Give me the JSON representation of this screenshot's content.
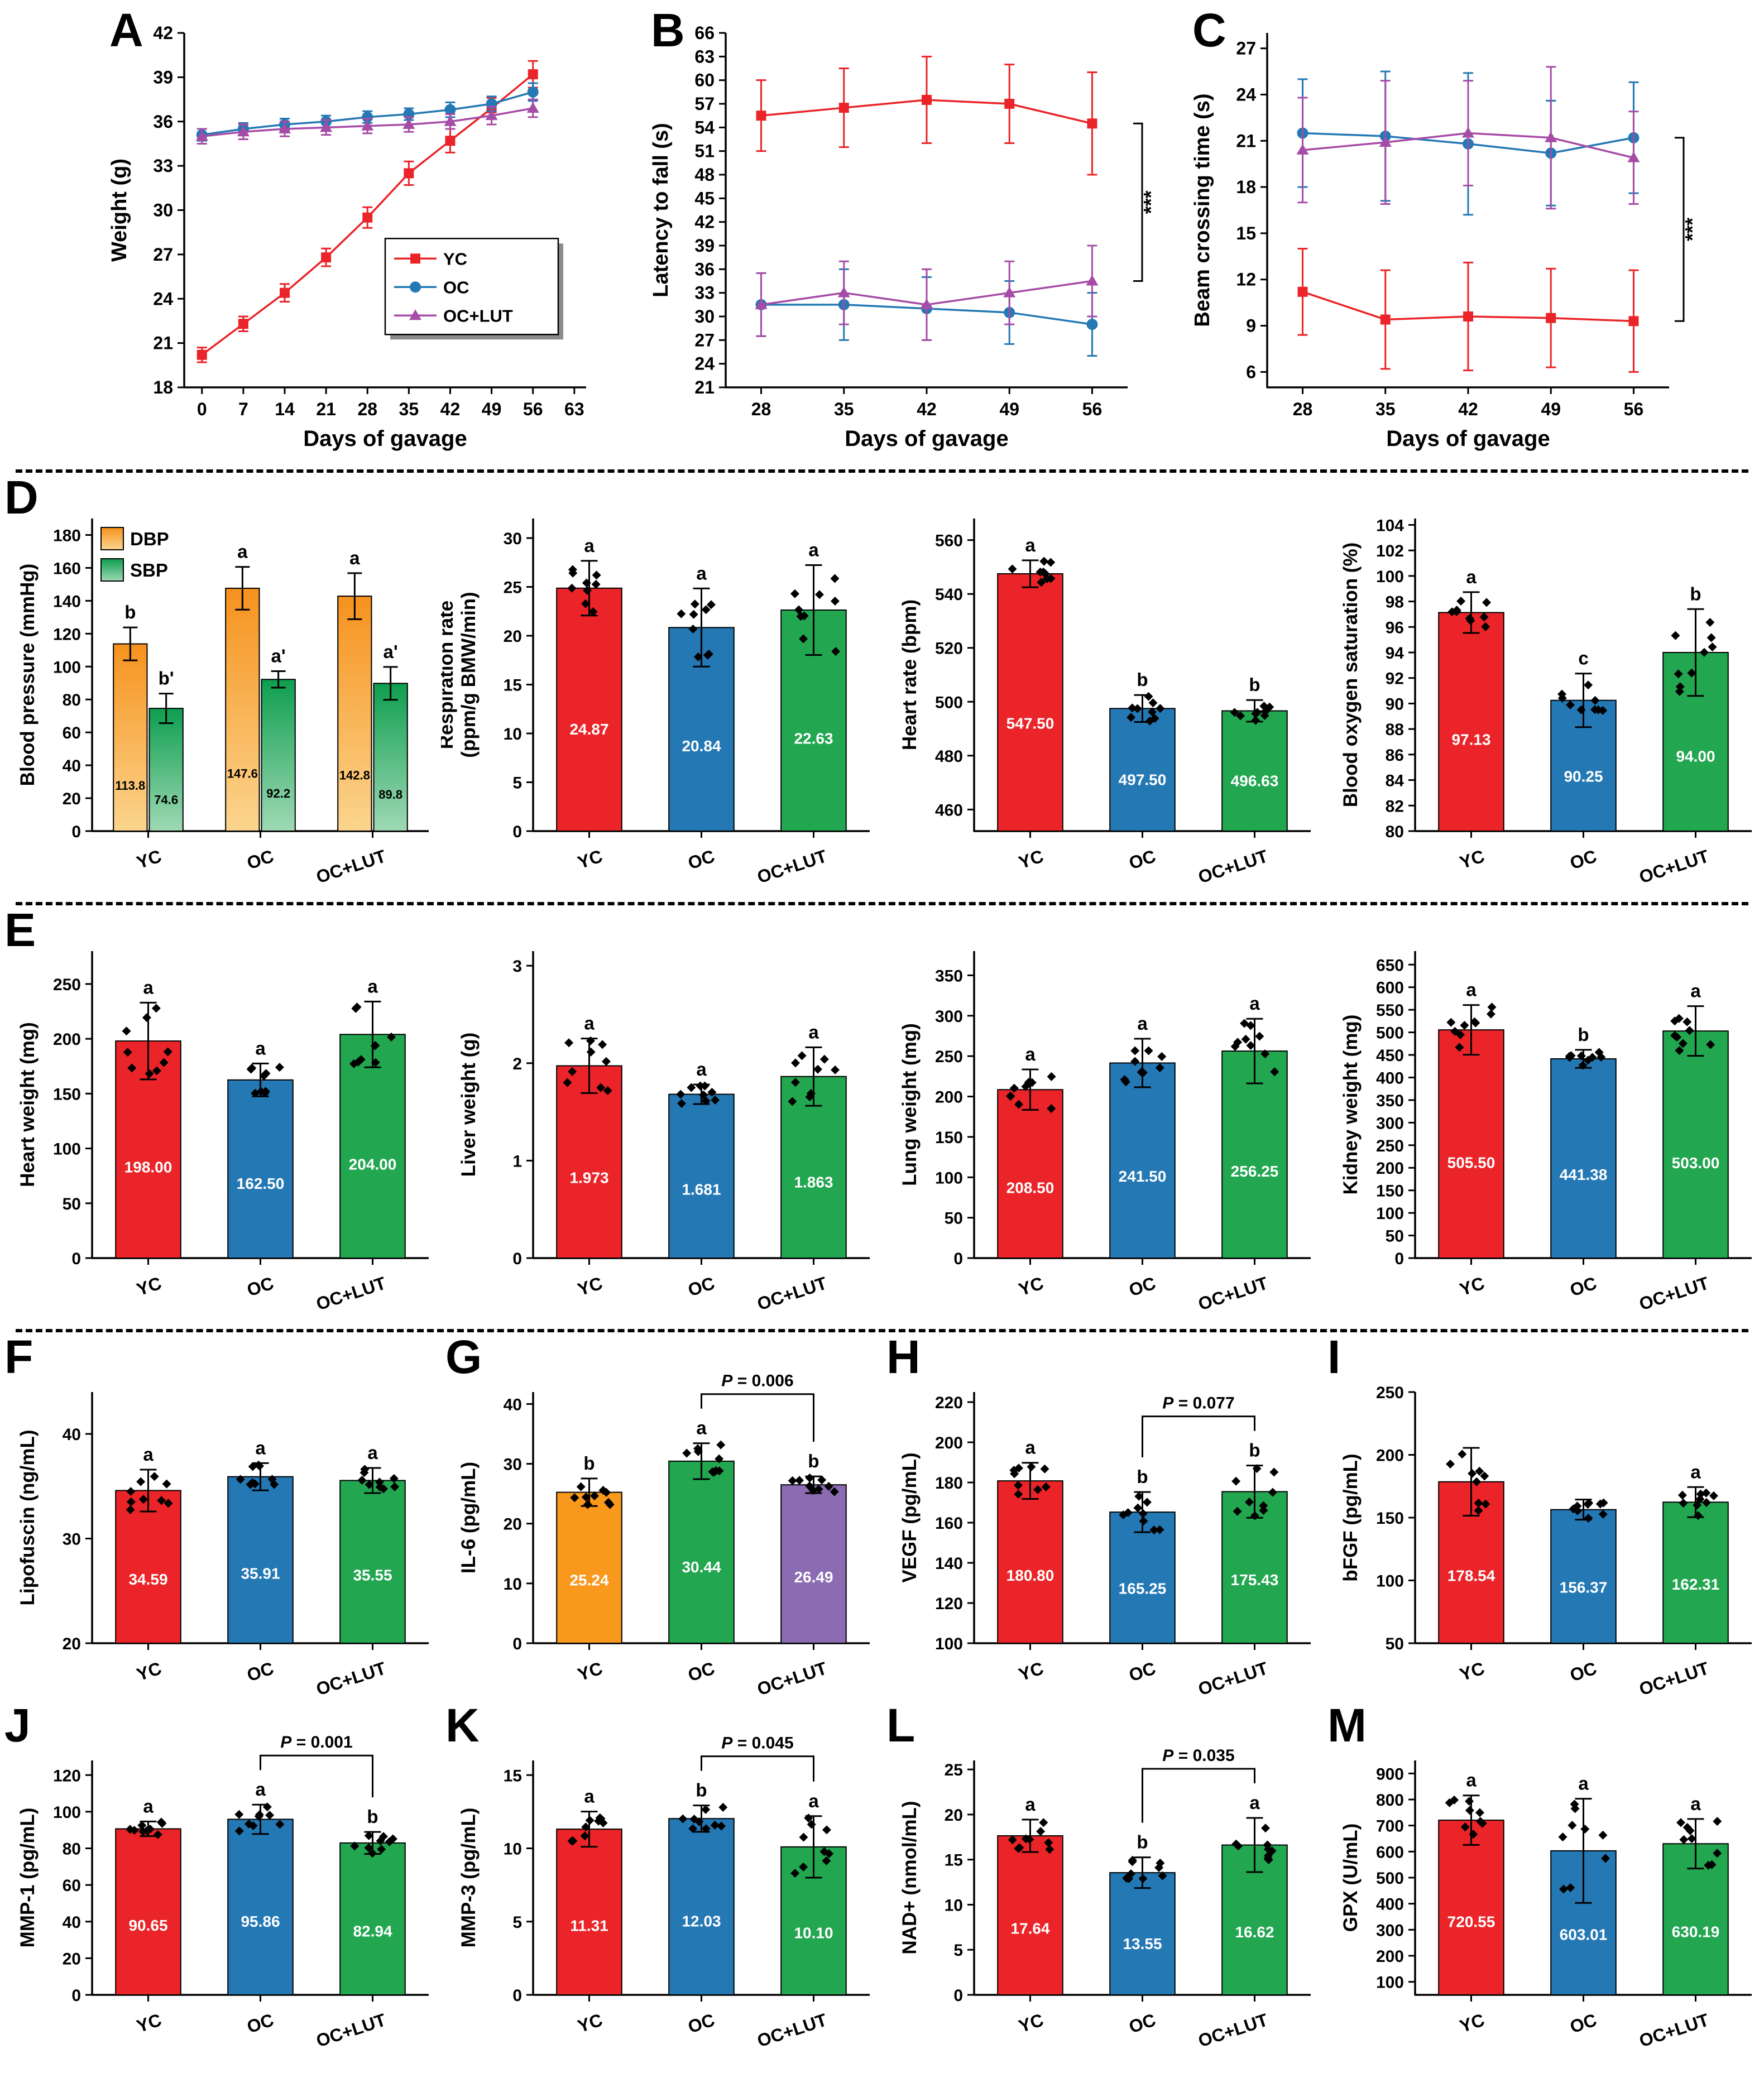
{
  "groups": [
    "YC",
    "OC",
    "OC+LUT"
  ],
  "colors": {
    "yc": "#EA2428",
    "oc": "#2478B4",
    "green": "#22A650",
    "purple": "#A64CA6",
    "orange": "#F8981D",
    "purplebar": "#8B6BB1"
  },
  "chart_data": [
    {
      "panel": "A",
      "type": "line",
      "xlabel": "Days of gavage",
      "ylabel": "Weight (g)",
      "xlim": [
        -3,
        65
      ],
      "xticks": [
        0,
        7,
        14,
        21,
        28,
        35,
        42,
        49,
        56,
        63
      ],
      "ylim": [
        18,
        42
      ],
      "yticks": [
        18,
        21,
        24,
        27,
        30,
        33,
        36,
        39,
        42
      ],
      "x": [
        0,
        7,
        14,
        21,
        28,
        35,
        42,
        49,
        56
      ],
      "series": [
        {
          "name": "YC",
          "color": "yc",
          "marker": "square",
          "y": [
            20.2,
            22.3,
            24.4,
            26.8,
            29.5,
            32.5,
            34.7,
            36.9,
            39.2
          ],
          "err": [
            0.5,
            0.5,
            0.6,
            0.6,
            0.7,
            0.8,
            0.8,
            0.7,
            0.9
          ]
        },
        {
          "name": "OC",
          "color": "oc",
          "marker": "circle",
          "y": [
            35.1,
            35.5,
            35.8,
            36.0,
            36.3,
            36.5,
            36.8,
            37.2,
            38.0
          ],
          "err": [
            0.4,
            0.4,
            0.4,
            0.4,
            0.4,
            0.4,
            0.5,
            0.5,
            0.6
          ]
        },
        {
          "name": "OC+LUT",
          "color": "purple",
          "marker": "triangle",
          "y": [
            35.0,
            35.3,
            35.5,
            35.6,
            35.7,
            35.8,
            36.0,
            36.4,
            36.9
          ],
          "err": [
            0.5,
            0.5,
            0.5,
            0.5,
            0.5,
            0.5,
            0.5,
            0.6,
            0.6
          ]
        }
      ],
      "legend": true
    },
    {
      "panel": "B",
      "type": "line",
      "xlabel": "Days of gavage",
      "ylabel": "Latency to fall (s)",
      "xlim": [
        25,
        59
      ],
      "xticks": [
        28,
        35,
        42,
        49,
        56
      ],
      "ylim": [
        21,
        66
      ],
      "yticks": [
        21,
        24,
        27,
        30,
        33,
        36,
        39,
        42,
        45,
        48,
        51,
        54,
        57,
        60,
        63,
        66
      ],
      "x": [
        28,
        35,
        42,
        49,
        56
      ],
      "series": [
        {
          "name": "YC",
          "color": "yc",
          "marker": "square",
          "y": [
            55.5,
            56.5,
            57.5,
            57.0,
            54.5
          ],
          "err": [
            4.5,
            5.0,
            5.5,
            5.0,
            6.5
          ]
        },
        {
          "name": "OC",
          "color": "oc",
          "marker": "circle",
          "y": [
            31.5,
            31.5,
            31.0,
            30.5,
            29.0
          ],
          "err": [
            4.0,
            4.5,
            4.0,
            4.0,
            4.0
          ]
        },
        {
          "name": "OC+LUT",
          "color": "purple",
          "marker": "triangle",
          "y": [
            31.5,
            33.0,
            31.5,
            33.0,
            34.5
          ],
          "err": [
            4.0,
            4.0,
            4.5,
            4.0,
            4.5
          ]
        }
      ],
      "sig": {
        "label": "***",
        "series": [
          0,
          2
        ]
      }
    },
    {
      "panel": "C",
      "type": "line",
      "xlabel": "Days of gavage",
      "ylabel": "Beam crossing time (s)",
      "xlim": [
        25,
        59
      ],
      "xticks": [
        28,
        35,
        42,
        49,
        56
      ],
      "ylim": [
        5,
        28
      ],
      "yticks": [
        6,
        9,
        12,
        15,
        18,
        21,
        24,
        27
      ],
      "x": [
        28,
        35,
        42,
        49,
        56
      ],
      "series": [
        {
          "name": "YC",
          "color": "yc",
          "marker": "square",
          "y": [
            11.2,
            9.4,
            9.6,
            9.5,
            9.3
          ],
          "err": [
            2.8,
            3.2,
            3.5,
            3.2,
            3.3
          ]
        },
        {
          "name": "OC",
          "color": "oc",
          "marker": "circle",
          "y": [
            21.5,
            21.3,
            20.8,
            20.2,
            21.2
          ],
          "err": [
            3.5,
            4.2,
            4.6,
            3.4,
            3.6
          ]
        },
        {
          "name": "OC+LUT",
          "color": "purple",
          "marker": "triangle",
          "y": [
            20.4,
            20.9,
            21.5,
            21.2,
            19.9
          ],
          "err": [
            3.4,
            4.0,
            3.4,
            4.6,
            3.0
          ]
        }
      ],
      "sig": {
        "label": "***",
        "series": [
          1,
          0
        ]
      }
    },
    {
      "panel": "D",
      "type": "grouped-bar",
      "ylabel": "Blood pressure (mmHg)",
      "ylim": [
        0,
        190
      ],
      "yticks": [
        0,
        20,
        40,
        60,
        80,
        100,
        120,
        140,
        160,
        180
      ],
      "categories": [
        "YC",
        "OC",
        "OC+LUT"
      ],
      "series": [
        {
          "name": "DBP",
          "color_top": "#F6921E",
          "color_bottom": "#FBD58E",
          "values": [
            113.8,
            147.6,
            142.8
          ],
          "value_labels": [
            "113.8",
            "147.6",
            "142.8"
          ],
          "errors": [
            10,
            13,
            14
          ],
          "letters": [
            "b",
            "a",
            "a"
          ]
        },
        {
          "name": "SBP",
          "color_top": "#0E9E4F",
          "color_bottom": "#9FD9B4",
          "values": [
            74.6,
            92.2,
            89.8
          ],
          "value_labels": [
            "74.6",
            "92.2",
            "89.8"
          ],
          "errors": [
            9,
            5,
            10
          ],
          "letters": [
            "b'",
            "a'",
            "a'"
          ]
        }
      ]
    },
    {
      "panel": "",
      "type": "bar",
      "ylabel": "Respiration rate\n(ppm/g BMW/min)",
      "ylim": [
        0,
        32
      ],
      "yticks": [
        0,
        5,
        10,
        15,
        20,
        25,
        30
      ],
      "values": [
        24.87,
        20.84,
        22.63
      ],
      "value_labels": [
        "24.87",
        "20.84",
        "22.63"
      ],
      "errors": [
        2.8,
        4.0,
        4.6
      ],
      "letters": [
        "a",
        "a",
        "a"
      ],
      "colors": [
        "yc",
        "oc",
        "green"
      ]
    },
    {
      "panel": "",
      "type": "bar",
      "ylabel": "Heart rate (bpm)",
      "ylim": [
        452,
        568
      ],
      "yticks": [
        460,
        480,
        500,
        520,
        540,
        560
      ],
      "values": [
        547.5,
        497.5,
        496.63
      ],
      "value_labels": [
        "547.50",
        "497.50",
        "496.63"
      ],
      "errors": [
        5,
        5,
        4
      ],
      "letters": [
        "a",
        "b",
        "b"
      ],
      "colors": [
        "yc",
        "oc",
        "green"
      ]
    },
    {
      "panel": "",
      "type": "bar",
      "ylabel": "Blood oxygen saturation (%)",
      "ylim": [
        80,
        104.5
      ],
      "yticks": [
        80,
        82,
        84,
        86,
        88,
        90,
        92,
        94,
        96,
        98,
        100,
        102,
        104
      ],
      "values": [
        97.13,
        90.25,
        94.0
      ],
      "value_labels": [
        "97.13",
        "90.25",
        "94.00"
      ],
      "errors": [
        1.6,
        2.1,
        3.4
      ],
      "letters": [
        "a",
        "c",
        "b"
      ],
      "colors": [
        "yc",
        "oc",
        "green"
      ]
    },
    {
      "panel": "E",
      "type": "bar",
      "ylabel": "Heart weight (mg)",
      "ylim": [
        0,
        280
      ],
      "yticks": [
        0,
        50,
        100,
        150,
        200,
        250
      ],
      "values": [
        198.0,
        162.5,
        204.0
      ],
      "value_labels": [
        "198.00",
        "162.50",
        "204.00"
      ],
      "errors": [
        35,
        15,
        30
      ],
      "letters": [
        "a",
        "a",
        "a"
      ],
      "colors": [
        "yc",
        "oc",
        "green"
      ]
    },
    {
      "panel": "",
      "type": "bar",
      "ylabel": "Liver weight (g)",
      "ylim": [
        0,
        3.15
      ],
      "yticks": [
        0,
        1,
        2,
        3
      ],
      "values": [
        1.973,
        1.681,
        1.863
      ],
      "value_labels": [
        "1.973",
        "1.681",
        "1.863"
      ],
      "errors": [
        0.28,
        0.1,
        0.3
      ],
      "letters": [
        "a",
        "a",
        "a"
      ],
      "colors": [
        "yc",
        "oc",
        "green"
      ]
    },
    {
      "panel": "",
      "type": "bar",
      "ylabel": "Lung weight (mg)",
      "ylim": [
        0,
        380
      ],
      "yticks": [
        0,
        50,
        100,
        150,
        200,
        250,
        300,
        350
      ],
      "values": [
        208.5,
        241.5,
        256.25
      ],
      "value_labels": [
        "208.50",
        "241.50",
        "256.25"
      ],
      "errors": [
        25,
        30,
        40
      ],
      "letters": [
        "a",
        "a",
        "a"
      ],
      "colors": [
        "yc",
        "oc",
        "green"
      ]
    },
    {
      "panel": "",
      "type": "bar",
      "ylabel": "Kidney weight (mg)",
      "ylim": [
        0,
        680
      ],
      "yticks": [
        0,
        50,
        100,
        150,
        200,
        250,
        300,
        350,
        400,
        450,
        500,
        550,
        600,
        650
      ],
      "values": [
        505.5,
        441.38,
        503.0
      ],
      "value_labels": [
        "505.50",
        "441.38",
        "503.00"
      ],
      "errors": [
        55,
        20,
        55
      ],
      "letters": [
        "a",
        "b",
        "a"
      ],
      "colors": [
        "yc",
        "oc",
        "green"
      ]
    },
    {
      "panel": "F",
      "type": "bar",
      "ylabel": "Lipofuscin (ng/mL)",
      "ylim": [
        20,
        44
      ],
      "yticks": [
        20,
        30,
        40
      ],
      "values": [
        34.59,
        35.91,
        35.55
      ],
      "value_labels": [
        "34.59",
        "35.91",
        "35.55"
      ],
      "errors": [
        2.0,
        1.3,
        1.2
      ],
      "letters": [
        "a",
        "a",
        "a"
      ],
      "colors": [
        "yc",
        "oc",
        "green"
      ]
    },
    {
      "panel": "G",
      "type": "bar",
      "ylabel": "IL-6 (pg/mL)",
      "ylim": [
        0,
        42
      ],
      "yticks": [
        0,
        10,
        20,
        30,
        40
      ],
      "values": [
        25.24,
        30.44,
        26.49
      ],
      "value_labels": [
        "25.24",
        "30.44",
        "26.49"
      ],
      "errors": [
        2.3,
        3.0,
        1.4
      ],
      "letters": [
        "b",
        "a",
        "b"
      ],
      "colors": [
        "orange",
        "green",
        "purplebar"
      ],
      "pvalue": {
        "label": "P = 0.006",
        "bars": [
          1,
          2
        ]
      }
    },
    {
      "panel": "H",
      "type": "bar",
      "ylabel": "VEGF (pg/mL)",
      "ylim": [
        100,
        225
      ],
      "yticks": [
        100,
        120,
        140,
        160,
        180,
        200,
        220
      ],
      "values": [
        180.8,
        165.25,
        175.43
      ],
      "value_labels": [
        "180.80",
        "165.25",
        "175.43"
      ],
      "errors": [
        9,
        10,
        13
      ],
      "letters": [
        "a",
        "b",
        "b"
      ],
      "colors": [
        "yc",
        "oc",
        "green"
      ],
      "pvalue": {
        "label": "P = 0.077",
        "bars": [
          1,
          2
        ]
      }
    },
    {
      "panel": "I",
      "type": "bar",
      "ylabel": "bFGF (pg/mL)",
      "ylim": [
        50,
        250
      ],
      "yticks": [
        50,
        100,
        150,
        200,
        250
      ],
      "values": [
        178.54,
        156.37,
        162.31
      ],
      "value_labels": [
        "178.54",
        "156.37",
        "162.31"
      ],
      "errors": [
        27,
        8,
        12
      ],
      "letters": [
        "",
        "",
        "a"
      ],
      "colors": [
        "yc",
        "oc",
        "green"
      ]
    },
    {
      "panel": "J",
      "type": "bar",
      "ylabel": "MMP-1 (pg/mL)",
      "ylim": [
        0,
        128
      ],
      "yticks": [
        0,
        20,
        40,
        60,
        80,
        100,
        120
      ],
      "values": [
        90.65,
        95.86,
        82.94
      ],
      "value_labels": [
        "90.65",
        "95.86",
        "82.94"
      ],
      "errors": [
        4,
        8,
        6
      ],
      "letters": [
        "a",
        "a",
        "b"
      ],
      "colors": [
        "yc",
        "oc",
        "green"
      ],
      "pvalue": {
        "label": "P = 0.001",
        "bars": [
          1,
          2
        ]
      }
    },
    {
      "panel": "K",
      "type": "bar",
      "ylabel": "MMP-3 (pg/mL)",
      "ylim": [
        0,
        16
      ],
      "yticks": [
        0,
        5,
        10,
        15
      ],
      "values": [
        11.31,
        12.03,
        10.1
      ],
      "value_labels": [
        "11.31",
        "12.03",
        "10.10"
      ],
      "errors": [
        1.2,
        0.9,
        2.1
      ],
      "letters": [
        "a",
        "b",
        "a"
      ],
      "colors": [
        "yc",
        "oc",
        "green"
      ],
      "pvalue": {
        "label": "P = 0.045",
        "bars": [
          1,
          2
        ]
      }
    },
    {
      "panel": "L",
      "type": "bar",
      "ylabel": "NAD+ (nmol/mL)",
      "ylim": [
        0,
        26
      ],
      "yticks": [
        0,
        5,
        10,
        15,
        20,
        25
      ],
      "values": [
        17.64,
        13.55,
        16.62
      ],
      "value_labels": [
        "17.64",
        "13.55",
        "16.62"
      ],
      "errors": [
        1.8,
        1.7,
        3.0
      ],
      "letters": [
        "a",
        "b",
        "a"
      ],
      "colors": [
        "yc",
        "oc",
        "green"
      ],
      "pvalue": {
        "label": "P = 0.035",
        "bars": [
          1,
          2
        ]
      }
    },
    {
      "panel": "M",
      "type": "bar",
      "ylabel": "GPX (U/mL)",
      "ylim": [
        50,
        950
      ],
      "yticks": [
        100,
        200,
        300,
        400,
        500,
        600,
        700,
        800,
        900
      ],
      "values": [
        720.55,
        603.01,
        630.19
      ],
      "value_labels": [
        "720.55",
        "603.01",
        "630.19"
      ],
      "errors": [
        95,
        200,
        95
      ],
      "letters": [
        "a",
        "a",
        "a"
      ],
      "colors": [
        "yc",
        "oc",
        "green"
      ]
    }
  ]
}
